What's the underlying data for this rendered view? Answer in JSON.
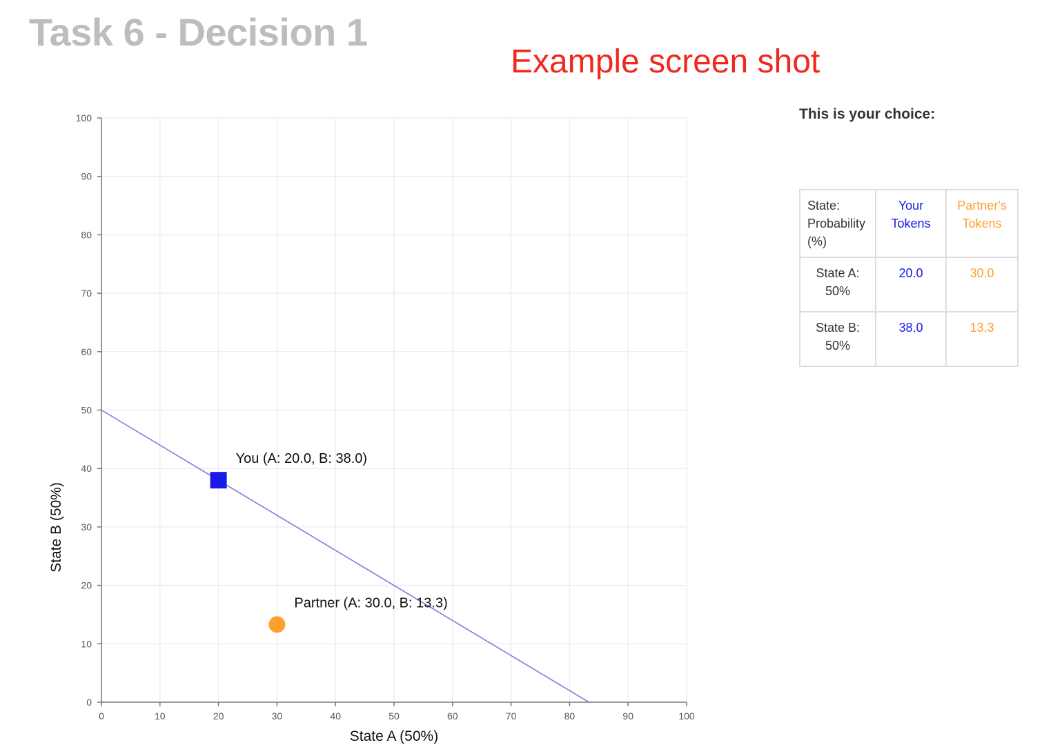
{
  "page": {
    "title": "Task 6 - Decision 1",
    "example_note": "Example screen shot"
  },
  "colors": {
    "you": "#1a1ae6",
    "partner": "#ff9f2e",
    "budget_line": "#8877dd",
    "title_gray": "#bdbdbd",
    "note_red": "#f0281e"
  },
  "chart_data": {
    "type": "scatter",
    "xlabel": "State A (50%)",
    "ylabel": "State B (50%)",
    "xlim": [
      0,
      100
    ],
    "ylim": [
      0,
      100
    ],
    "xticks": [
      0,
      10,
      20,
      30,
      40,
      50,
      60,
      70,
      80,
      90,
      100
    ],
    "yticks": [
      0,
      10,
      20,
      30,
      40,
      50,
      60,
      70,
      80,
      90,
      100
    ],
    "grid": true,
    "budget_line": {
      "x": [
        0,
        83.3
      ],
      "y": [
        50,
        0
      ]
    },
    "points": [
      {
        "label": "You (A: 20.0, B: 38.0)",
        "x": 20.0,
        "y": 38.0,
        "marker": "square",
        "color": "#1a1ae6"
      },
      {
        "label": "Partner (A: 30.0, B: 13.3)",
        "x": 30.0,
        "y": 13.3,
        "marker": "circle",
        "color": "#ff9f2e"
      }
    ]
  },
  "choice": {
    "heading": "This is your choice:",
    "table": {
      "col_state": "State: Probability (%)",
      "col_you": "Your Tokens",
      "col_partner": "Partner's Tokens",
      "rows": [
        {
          "state": "State A: 50%",
          "you": "20.0",
          "partner": "30.0"
        },
        {
          "state": "State B: 50%",
          "you": "38.0",
          "partner": "13.3"
        }
      ]
    }
  }
}
